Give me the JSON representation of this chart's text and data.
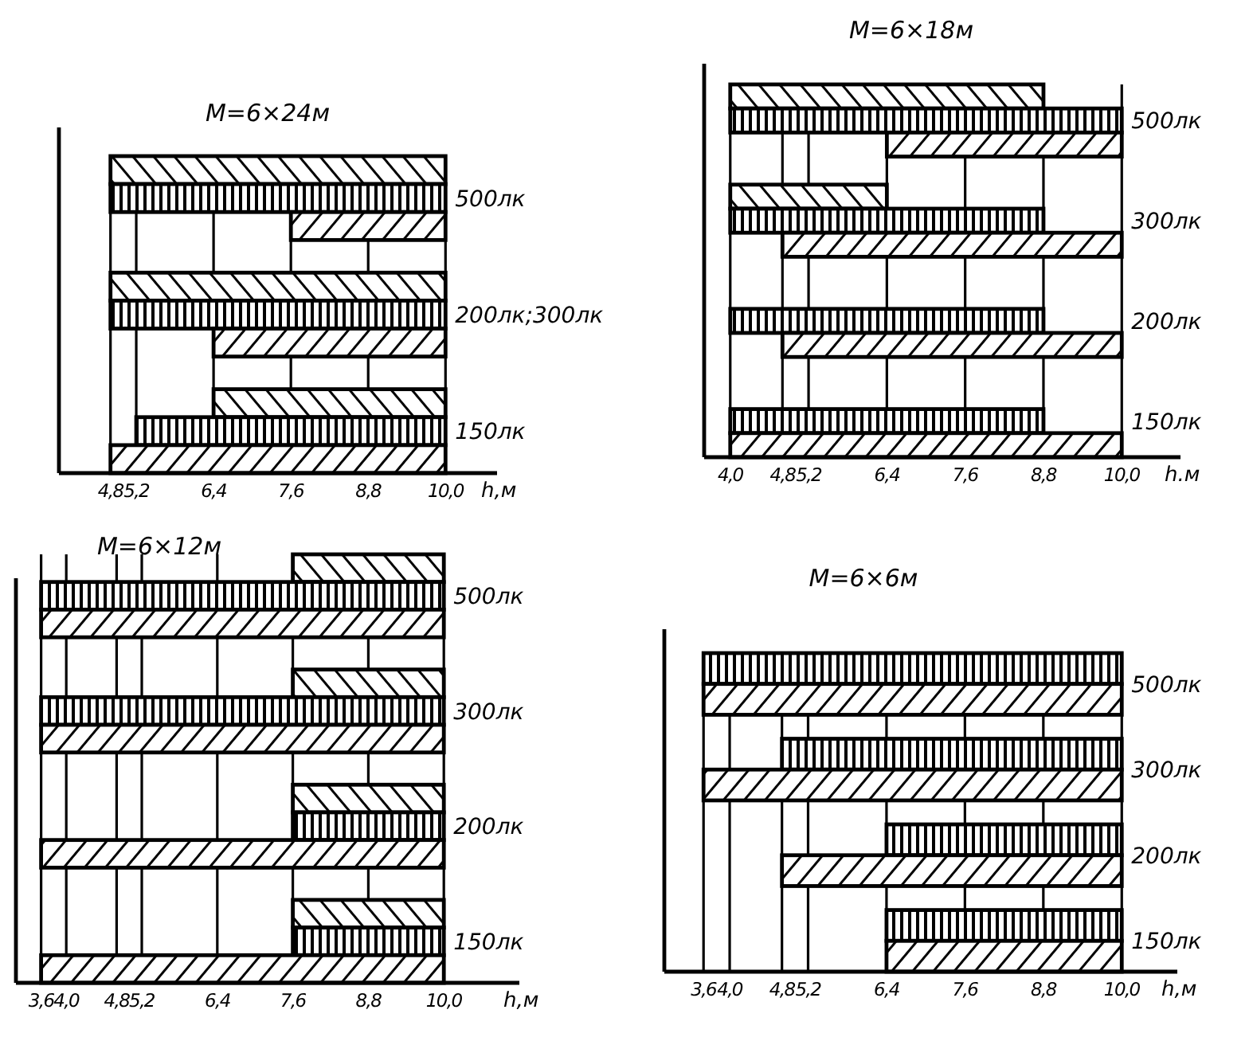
{
  "chart_data": [
    {
      "type": "bar",
      "orientation": "horizontal",
      "title": "M=6×24м",
      "xlabel": "h,м",
      "categories": [
        "500лк",
        "200лк;300лк",
        "150лк"
      ],
      "xlim": [
        4.0,
        10.8
      ],
      "xticks": [
        {
          "value": 4.8,
          "label": "4,8"
        },
        {
          "value": 5.2,
          "label": "5,2"
        },
        {
          "value": 6.4,
          "label": "6,4"
        },
        {
          "value": 7.6,
          "label": "7,6"
        },
        {
          "value": 8.8,
          "label": "8,8"
        },
        {
          "value": 10.0,
          "label": "10,0"
        }
      ],
      "grid": "x",
      "series": [
        {
          "color": "#000000",
          "base": [
            4.8,
            4.8,
            6.4
          ],
          "values": [
            5.2,
            5.2,
            3.6
          ]
        },
        {
          "color": "#000000",
          "base": [
            4.8,
            4.8,
            5.2
          ],
          "values": [
            5.2,
            5.2,
            4.8
          ]
        },
        {
          "color": "#000000",
          "base": [
            7.6,
            6.4,
            4.8
          ],
          "values": [
            2.4,
            3.6,
            5.2
          ]
        }
      ]
    },
    {
      "type": "bar",
      "orientation": "horizontal",
      "title": "M=6×18м",
      "xlabel": "h.м",
      "categories": [
        "500лк",
        "300лк",
        "200лк",
        "150лк"
      ],
      "xlim": [
        3.6,
        10.9
      ],
      "xticks": [
        {
          "value": 4.0,
          "label": "4,0"
        },
        {
          "value": 4.8,
          "label": "4,8"
        },
        {
          "value": 5.2,
          "label": "5,2"
        },
        {
          "value": 6.4,
          "label": "6,4"
        },
        {
          "value": 7.6,
          "label": "7,6"
        },
        {
          "value": 8.8,
          "label": "8,8"
        },
        {
          "value": 10.0,
          "label": "10,0"
        }
      ],
      "grid": "x",
      "series": [
        {
          "color": "#000000",
          "base": [
            4.0,
            4.0,
            null,
            null
          ],
          "values": [
            4.8,
            2.4,
            null,
            null
          ]
        },
        {
          "color": "#000000",
          "base": [
            4.0,
            4.0,
            4.0,
            4.0
          ],
          "values": [
            6.0,
            4.8,
            4.8,
            4.8
          ]
        },
        {
          "color": "#000000",
          "base": [
            6.4,
            4.8,
            4.8,
            4.0
          ],
          "values": [
            3.6,
            5.2,
            5.2,
            6.0
          ]
        }
      ]
    },
    {
      "type": "bar",
      "orientation": "horizontal",
      "title": "M=6×12м",
      "xlabel": "h,м",
      "categories": [
        "500лк",
        "300лк",
        "200лк",
        "150лк"
      ],
      "xlim": [
        3.2,
        11.2
      ],
      "xticks": [
        {
          "value": 3.6,
          "label": "3,6"
        },
        {
          "value": 4.0,
          "label": "4,0"
        },
        {
          "value": 4.8,
          "label": "4,8"
        },
        {
          "value": 5.2,
          "label": "5,2"
        },
        {
          "value": 6.4,
          "label": "6,4"
        },
        {
          "value": 7.6,
          "label": "7,6"
        },
        {
          "value": 8.8,
          "label": "8,8"
        },
        {
          "value": 10.0,
          "label": "10,0"
        }
      ],
      "grid": "x",
      "series": [
        {
          "color": "#000000",
          "base": [
            7.6,
            7.6,
            7.6,
            7.6
          ],
          "values": [
            2.4,
            2.4,
            2.4,
            2.4
          ]
        },
        {
          "color": "#000000",
          "base": [
            3.6,
            3.6,
            7.6,
            7.6
          ],
          "values": [
            6.4,
            6.4,
            2.4,
            2.4
          ]
        },
        {
          "color": "#000000",
          "base": [
            3.6,
            3.6,
            3.6,
            3.6
          ],
          "values": [
            6.4,
            6.4,
            6.4,
            6.4
          ]
        }
      ]
    },
    {
      "type": "bar",
      "orientation": "horizontal",
      "title": "M=6×6м",
      "xlabel": "h,м",
      "categories": [
        "500лк",
        "300лк",
        "200лк",
        "150лк"
      ],
      "xlim": [
        3.0,
        10.85
      ],
      "xticks": [
        {
          "value": 3.6,
          "label": "3,6"
        },
        {
          "value": 4.0,
          "label": "4,0"
        },
        {
          "value": 4.8,
          "label": "4,8"
        },
        {
          "value": 5.2,
          "label": "5,2"
        },
        {
          "value": 6.4,
          "label": "6,4"
        },
        {
          "value": 7.6,
          "label": "7,6"
        },
        {
          "value": 8.8,
          "label": "8,8"
        },
        {
          "value": 10.0,
          "label": "10,0"
        }
      ],
      "grid": "x",
      "series": [
        {
          "color": "#000000",
          "base": [
            3.6,
            4.8,
            6.4,
            6.4
          ],
          "values": [
            6.4,
            5.2,
            3.6,
            3.6
          ]
        },
        {
          "color": "#000000",
          "base": [
            3.6,
            3.6,
            4.8,
            6.4
          ],
          "values": [
            6.4,
            6.4,
            5.2,
            3.6
          ]
        }
      ]
    }
  ]
}
